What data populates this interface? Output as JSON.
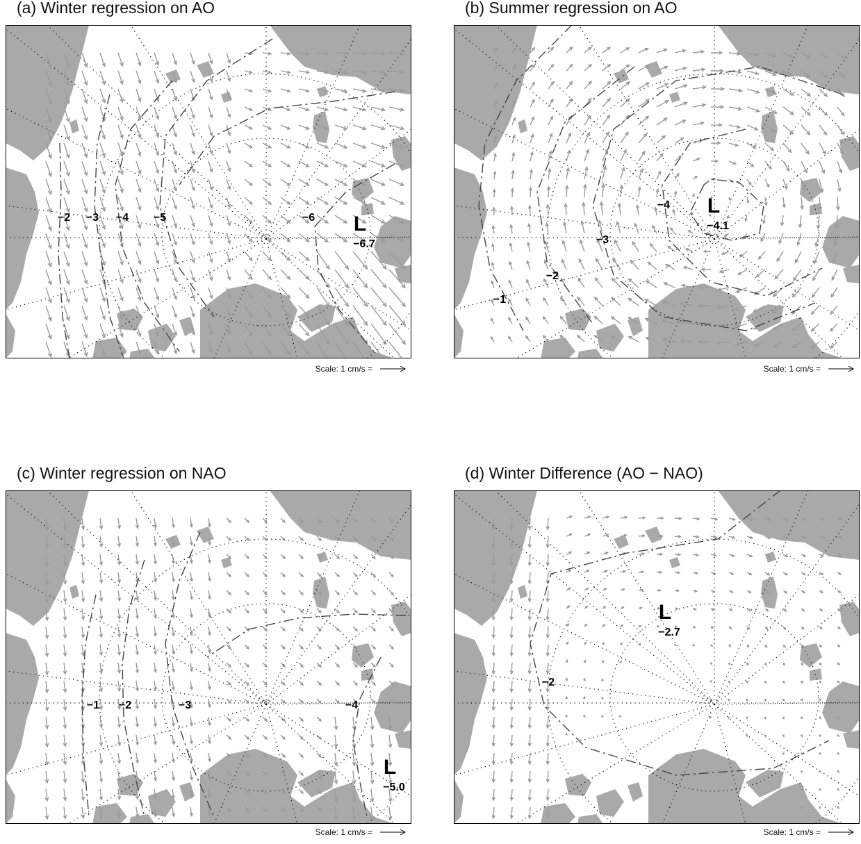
{
  "panels": [
    {
      "id": "a",
      "title": "(a) Winter regression on AO",
      "scale_label": "Scale: 1 cm/s =",
      "contours": [
        "−2",
        "−3",
        "−4",
        "−5",
        "−6"
      ],
      "low": {
        "label": "L",
        "value": "−6.7"
      }
    },
    {
      "id": "b",
      "title": "(b) Summer regression on AO",
      "scale_label": "Scale: 1 cm/s =",
      "contours": [
        "−1",
        "−2",
        "−3",
        "−4"
      ],
      "low": {
        "label": "L",
        "value": "−4.1"
      }
    },
    {
      "id": "c",
      "title": "(c) Winter regression on NAO",
      "scale_label": "Scale: 1 cm/s =",
      "contours": [
        "−1",
        "−2",
        "−3",
        "−4"
      ],
      "low": {
        "label": "L",
        "value": "−5.0"
      }
    },
    {
      "id": "d",
      "title": "(d) Winter Difference (AO − NAO)",
      "scale_label": "Scale: 1 cm/s =",
      "contours": [
        "−2"
      ],
      "low": {
        "label": "L",
        "value": "−2.7"
      }
    }
  ],
  "colors": {
    "land": "#a9a9a9",
    "ocean": "#ffffff",
    "vector": "#9a9a9a",
    "contour": "#444444",
    "grid": "#000000"
  }
}
